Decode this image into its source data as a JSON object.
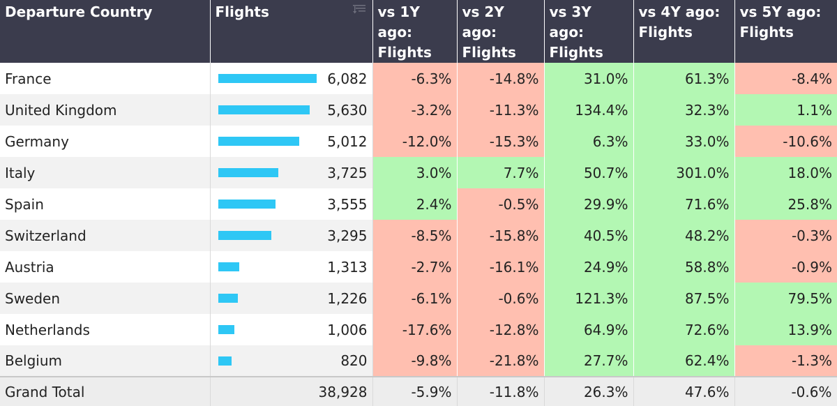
{
  "colors": {
    "header_bg": "#3b3c4d",
    "negative_bg": "#ffbfb0",
    "positive_bg": "#b3f7b3",
    "bar": "#2ec7f5"
  },
  "headers": {
    "country": "Departure Country",
    "flights": "Flights",
    "sort_icon": "sort-descending-icon",
    "vs1y_line1": "vs 1Y ago:",
    "vs1y_line2": "Flights",
    "vs2y_line1": "vs 2Y ago:",
    "vs2y_line2": "Flights",
    "vs3y_line1": "vs 3Y ago:",
    "vs3y_line2": "Flights",
    "vs4y_line1": "vs 4Y ago:",
    "vs4y_line2": "Flights",
    "vs5y_line1": "vs 5Y ago:",
    "vs5y_line2": "Flights"
  },
  "rows": [
    {
      "country": "France",
      "flights": "6,082",
      "flights_num": 6082,
      "vs1y": "-6.3%",
      "vs2y": "-14.8%",
      "vs3y": "31.0%",
      "vs4y": "61.3%",
      "vs5y": "-8.4%"
    },
    {
      "country": "United Kingdom",
      "flights": "5,630",
      "flights_num": 5630,
      "vs1y": "-3.2%",
      "vs2y": "-11.3%",
      "vs3y": "134.4%",
      "vs4y": "32.3%",
      "vs5y": "1.1%"
    },
    {
      "country": "Germany",
      "flights": "5,012",
      "flights_num": 5012,
      "vs1y": "-12.0%",
      "vs2y": "-15.3%",
      "vs3y": "6.3%",
      "vs4y": "33.0%",
      "vs5y": "-10.6%"
    },
    {
      "country": "Italy",
      "flights": "3,725",
      "flights_num": 3725,
      "vs1y": "3.0%",
      "vs2y": "7.7%",
      "vs3y": "50.7%",
      "vs4y": "301.0%",
      "vs5y": "18.0%"
    },
    {
      "country": "Spain",
      "flights": "3,555",
      "flights_num": 3555,
      "vs1y": "2.4%",
      "vs2y": "-0.5%",
      "vs3y": "29.9%",
      "vs4y": "71.6%",
      "vs5y": "25.8%"
    },
    {
      "country": "Switzerland",
      "flights": "3,295",
      "flights_num": 3295,
      "vs1y": "-8.5%",
      "vs2y": "-15.8%",
      "vs3y": "40.5%",
      "vs4y": "48.2%",
      "vs5y": "-0.3%"
    },
    {
      "country": "Austria",
      "flights": "1,313",
      "flights_num": 1313,
      "vs1y": "-2.7%",
      "vs2y": "-16.1%",
      "vs3y": "24.9%",
      "vs4y": "58.8%",
      "vs5y": "-0.9%"
    },
    {
      "country": "Sweden",
      "flights": "1,226",
      "flights_num": 1226,
      "vs1y": "-6.1%",
      "vs2y": "-0.6%",
      "vs3y": "121.3%",
      "vs4y": "87.5%",
      "vs5y": "79.5%"
    },
    {
      "country": "Netherlands",
      "flights": "1,006",
      "flights_num": 1006,
      "vs1y": "-17.6%",
      "vs2y": "-12.8%",
      "vs3y": "64.9%",
      "vs4y": "72.6%",
      "vs5y": "13.9%"
    },
    {
      "country": "Belgium",
      "flights": "820",
      "flights_num": 820,
      "vs1y": "-9.8%",
      "vs2y": "-21.8%",
      "vs3y": "27.7%",
      "vs4y": "62.4%",
      "vs5y": "-1.3%"
    }
  ],
  "total": {
    "label": "Grand Total",
    "flights": "38,928",
    "vs1y": "-5.9%",
    "vs2y": "-11.8%",
    "vs3y": "26.3%",
    "vs4y": "47.6%",
    "vs5y": "-0.6%"
  }
}
